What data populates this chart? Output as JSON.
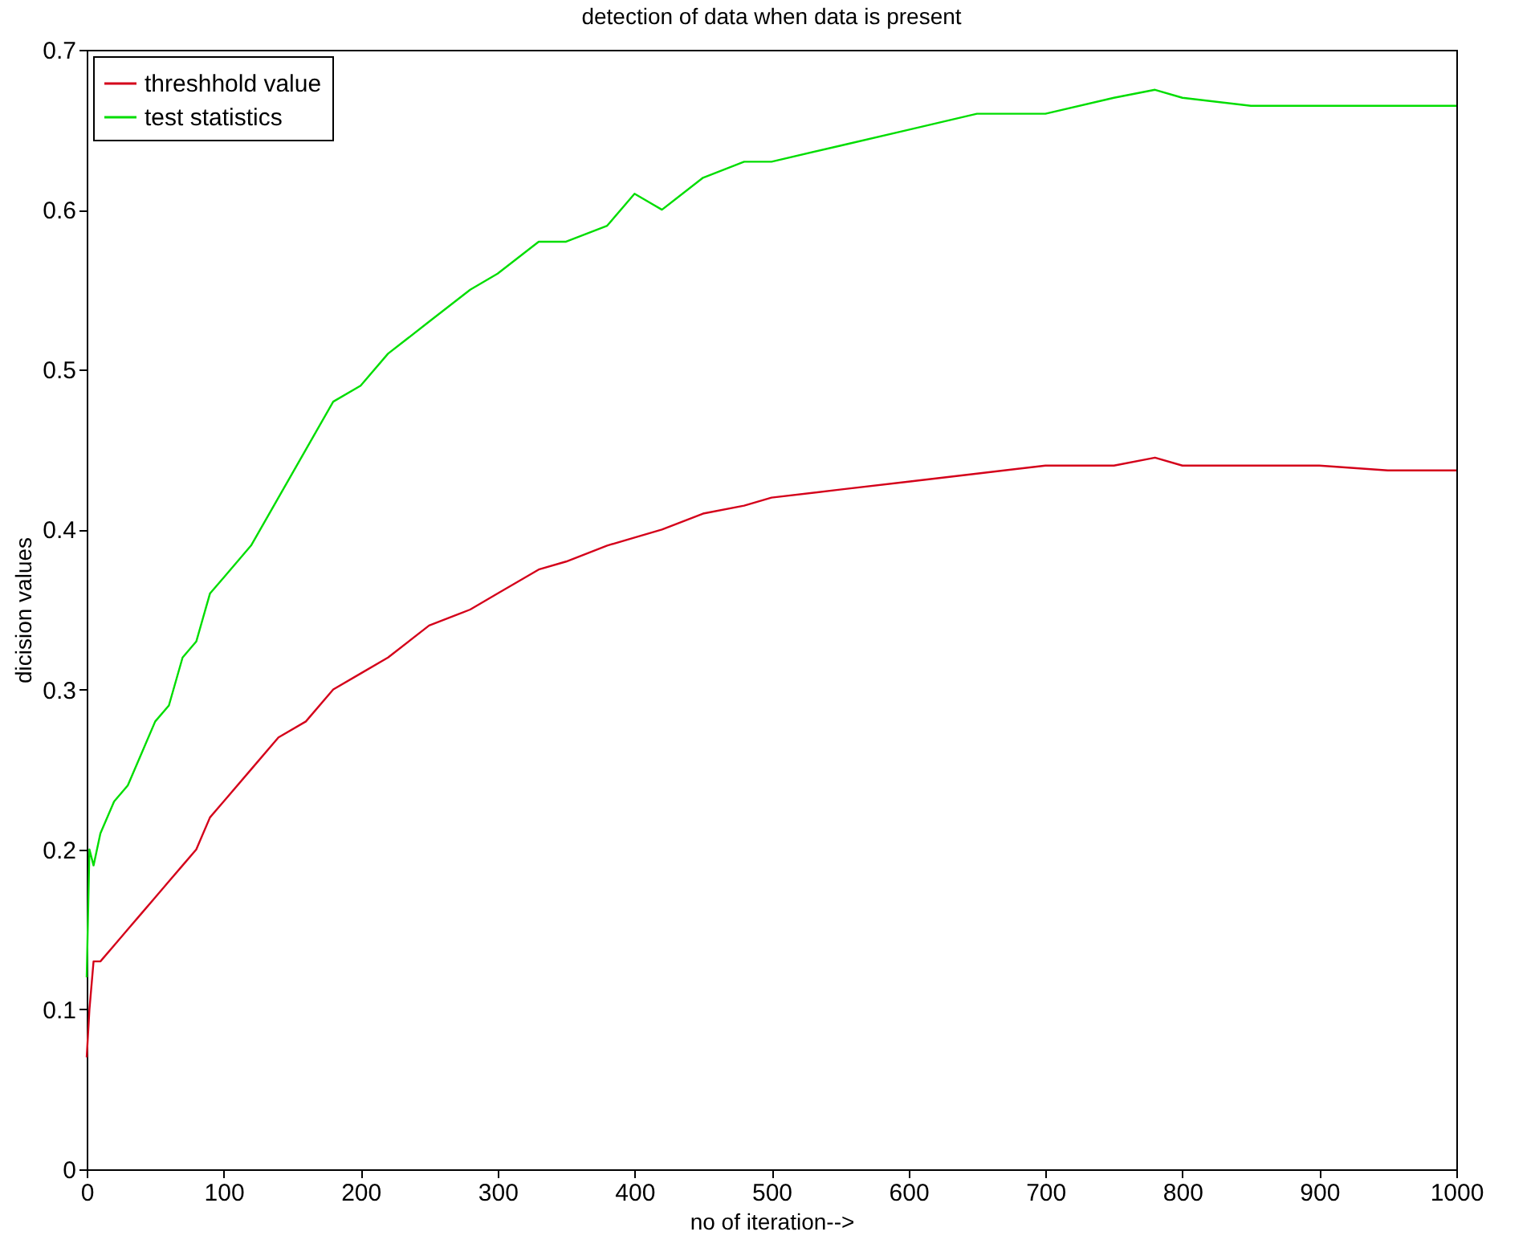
{
  "chart_data": {
    "type": "line",
    "title": "detection of data when data is present",
    "xlabel": "no of iteration-->",
    "ylabel": "dicision values",
    "x": [
      0,
      2,
      5,
      10,
      20,
      30,
      40,
      50,
      60,
      70,
      80,
      90,
      100,
      120,
      140,
      160,
      180,
      200,
      220,
      250,
      280,
      300,
      330,
      350,
      380,
      400,
      420,
      450,
      480,
      500,
      550,
      600,
      650,
      700,
      750,
      780,
      800,
      850,
      900,
      950,
      1000
    ],
    "series": [
      {
        "name": "threshhold value",
        "color": "#d4001a",
        "values": [
          0.07,
          0.1,
          0.13,
          0.13,
          0.14,
          0.15,
          0.16,
          0.17,
          0.18,
          0.19,
          0.2,
          0.22,
          0.23,
          0.25,
          0.27,
          0.28,
          0.3,
          0.31,
          0.32,
          0.34,
          0.35,
          0.36,
          0.375,
          0.38,
          0.39,
          0.395,
          0.4,
          0.41,
          0.415,
          0.42,
          0.425,
          0.43,
          0.435,
          0.44,
          0.44,
          0.445,
          0.44,
          0.44,
          0.44,
          0.437,
          0.437
        ]
      },
      {
        "name": "test statistics",
        "color": "#00dd00",
        "values": [
          0.12,
          0.2,
          0.19,
          0.21,
          0.23,
          0.24,
          0.26,
          0.28,
          0.29,
          0.32,
          0.33,
          0.36,
          0.37,
          0.39,
          0.42,
          0.45,
          0.48,
          0.49,
          0.51,
          0.53,
          0.55,
          0.56,
          0.58,
          0.58,
          0.59,
          0.61,
          0.6,
          0.62,
          0.63,
          0.63,
          0.64,
          0.65,
          0.66,
          0.66,
          0.67,
          0.675,
          0.67,
          0.665,
          0.665,
          0.665,
          0.665
        ]
      }
    ],
    "xlim": [
      0,
      1000
    ],
    "xticks": [
      0,
      100,
      200,
      300,
      400,
      500,
      600,
      700,
      800,
      900,
      1000
    ],
    "ylim": [
      0,
      0.7
    ],
    "yticks": [
      0,
      0.1,
      0.2,
      0.3,
      0.4,
      0.5,
      0.6,
      0.7
    ],
    "legend": "top left",
    "line_style": "solid"
  }
}
